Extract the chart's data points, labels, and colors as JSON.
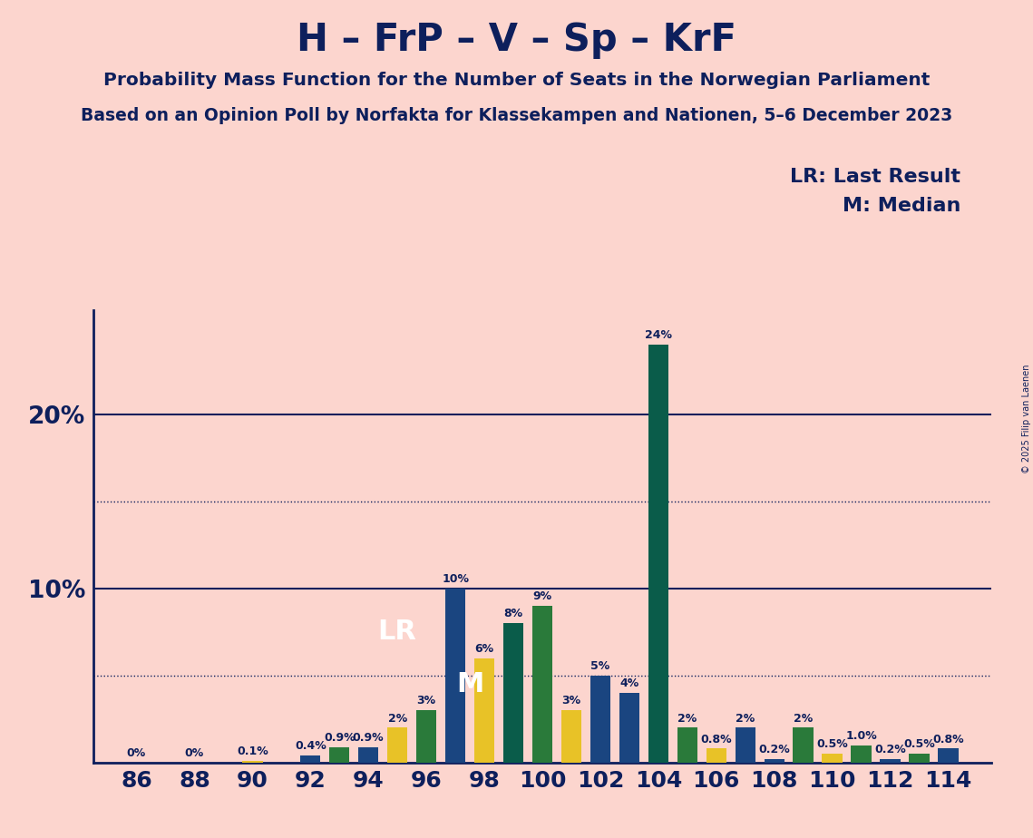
{
  "title": "H – FrP – V – Sp – KrF",
  "subtitle1": "Probability Mass Function for the Number of Seats in the Norwegian Parliament",
  "subtitle2": "Based on an Opinion Poll by Norfakta for Klassekampen and Nationen, 5–6 December 2023",
  "copyright": "© 2025 Filip van Laenen",
  "legend_lr": "LR: Last Result",
  "legend_m": "M: Median",
  "background_color": "#fcd5ce",
  "bar_color_blue": "#1a4580",
  "bar_color_darkgreen": "#0a5c4a",
  "bar_color_yellow": "#e8c227",
  "bar_color_green": "#2a7a3a",
  "text_color": "#0d1f5c",
  "seats": [
    86,
    87,
    88,
    89,
    90,
    91,
    92,
    93,
    94,
    95,
    96,
    97,
    98,
    99,
    100,
    101,
    102,
    103,
    104,
    105,
    106,
    107,
    108,
    109,
    110,
    111,
    112,
    113,
    114
  ],
  "values": [
    0.0,
    0.0,
    0.0,
    0.0,
    0.1,
    0.0,
    0.4,
    0.9,
    0.9,
    2.0,
    3.0,
    10.0,
    6.0,
    8.0,
    9.0,
    3.0,
    5.0,
    4.0,
    24.0,
    2.0,
    0.8,
    2.0,
    0.2,
    2.0,
    0.5,
    1.0,
    0.2,
    0.5,
    0.8
  ],
  "colors": [
    "#1a4580",
    "#1a4580",
    "#1a4580",
    "#1a4580",
    "#e8c227",
    "#1a4580",
    "#1a4580",
    "#2a7a3a",
    "#1a4580",
    "#e8c227",
    "#2a7a3a",
    "#1a4580",
    "#e8c227",
    "#0a5c4a",
    "#2a7a3a",
    "#e8c227",
    "#1a4580",
    "#1a4580",
    "#0a5c4a",
    "#2a7a3a",
    "#e8c227",
    "#1a4580",
    "#1a4580",
    "#2a7a3a",
    "#e8c227",
    "#2a7a3a",
    "#1a4580",
    "#2a7a3a",
    "#1a4580"
  ],
  "labels": [
    "0%",
    "",
    "0%",
    "",
    "0.1%",
    "",
    "0.4%",
    "0.9%",
    "0.9%",
    "2%",
    "3%",
    "10%",
    "6%",
    "8%",
    "9%",
    "3%",
    "5%",
    "4%",
    "24%",
    "2%",
    "0.8%",
    "2%",
    "0.2%",
    "2%",
    "0.5%",
    "1.0%",
    "0.2%",
    "0.5%",
    "0.8%"
  ],
  "show_label": [
    true,
    false,
    true,
    false,
    true,
    false,
    true,
    true,
    true,
    true,
    true,
    true,
    true,
    true,
    true,
    true,
    true,
    true,
    true,
    true,
    true,
    true,
    true,
    true,
    true,
    true,
    true,
    true,
    true
  ],
  "lr_x": 95,
  "lr_y": 7.5,
  "m_x": 97.5,
  "m_y": 4.5,
  "ylim": [
    0,
    26
  ],
  "xlim_left": 84.5,
  "xlim_right": 115.5,
  "bar_width": 0.7,
  "solid_hlines": [
    10,
    20
  ],
  "dotted_hlines": [
    5,
    15
  ]
}
